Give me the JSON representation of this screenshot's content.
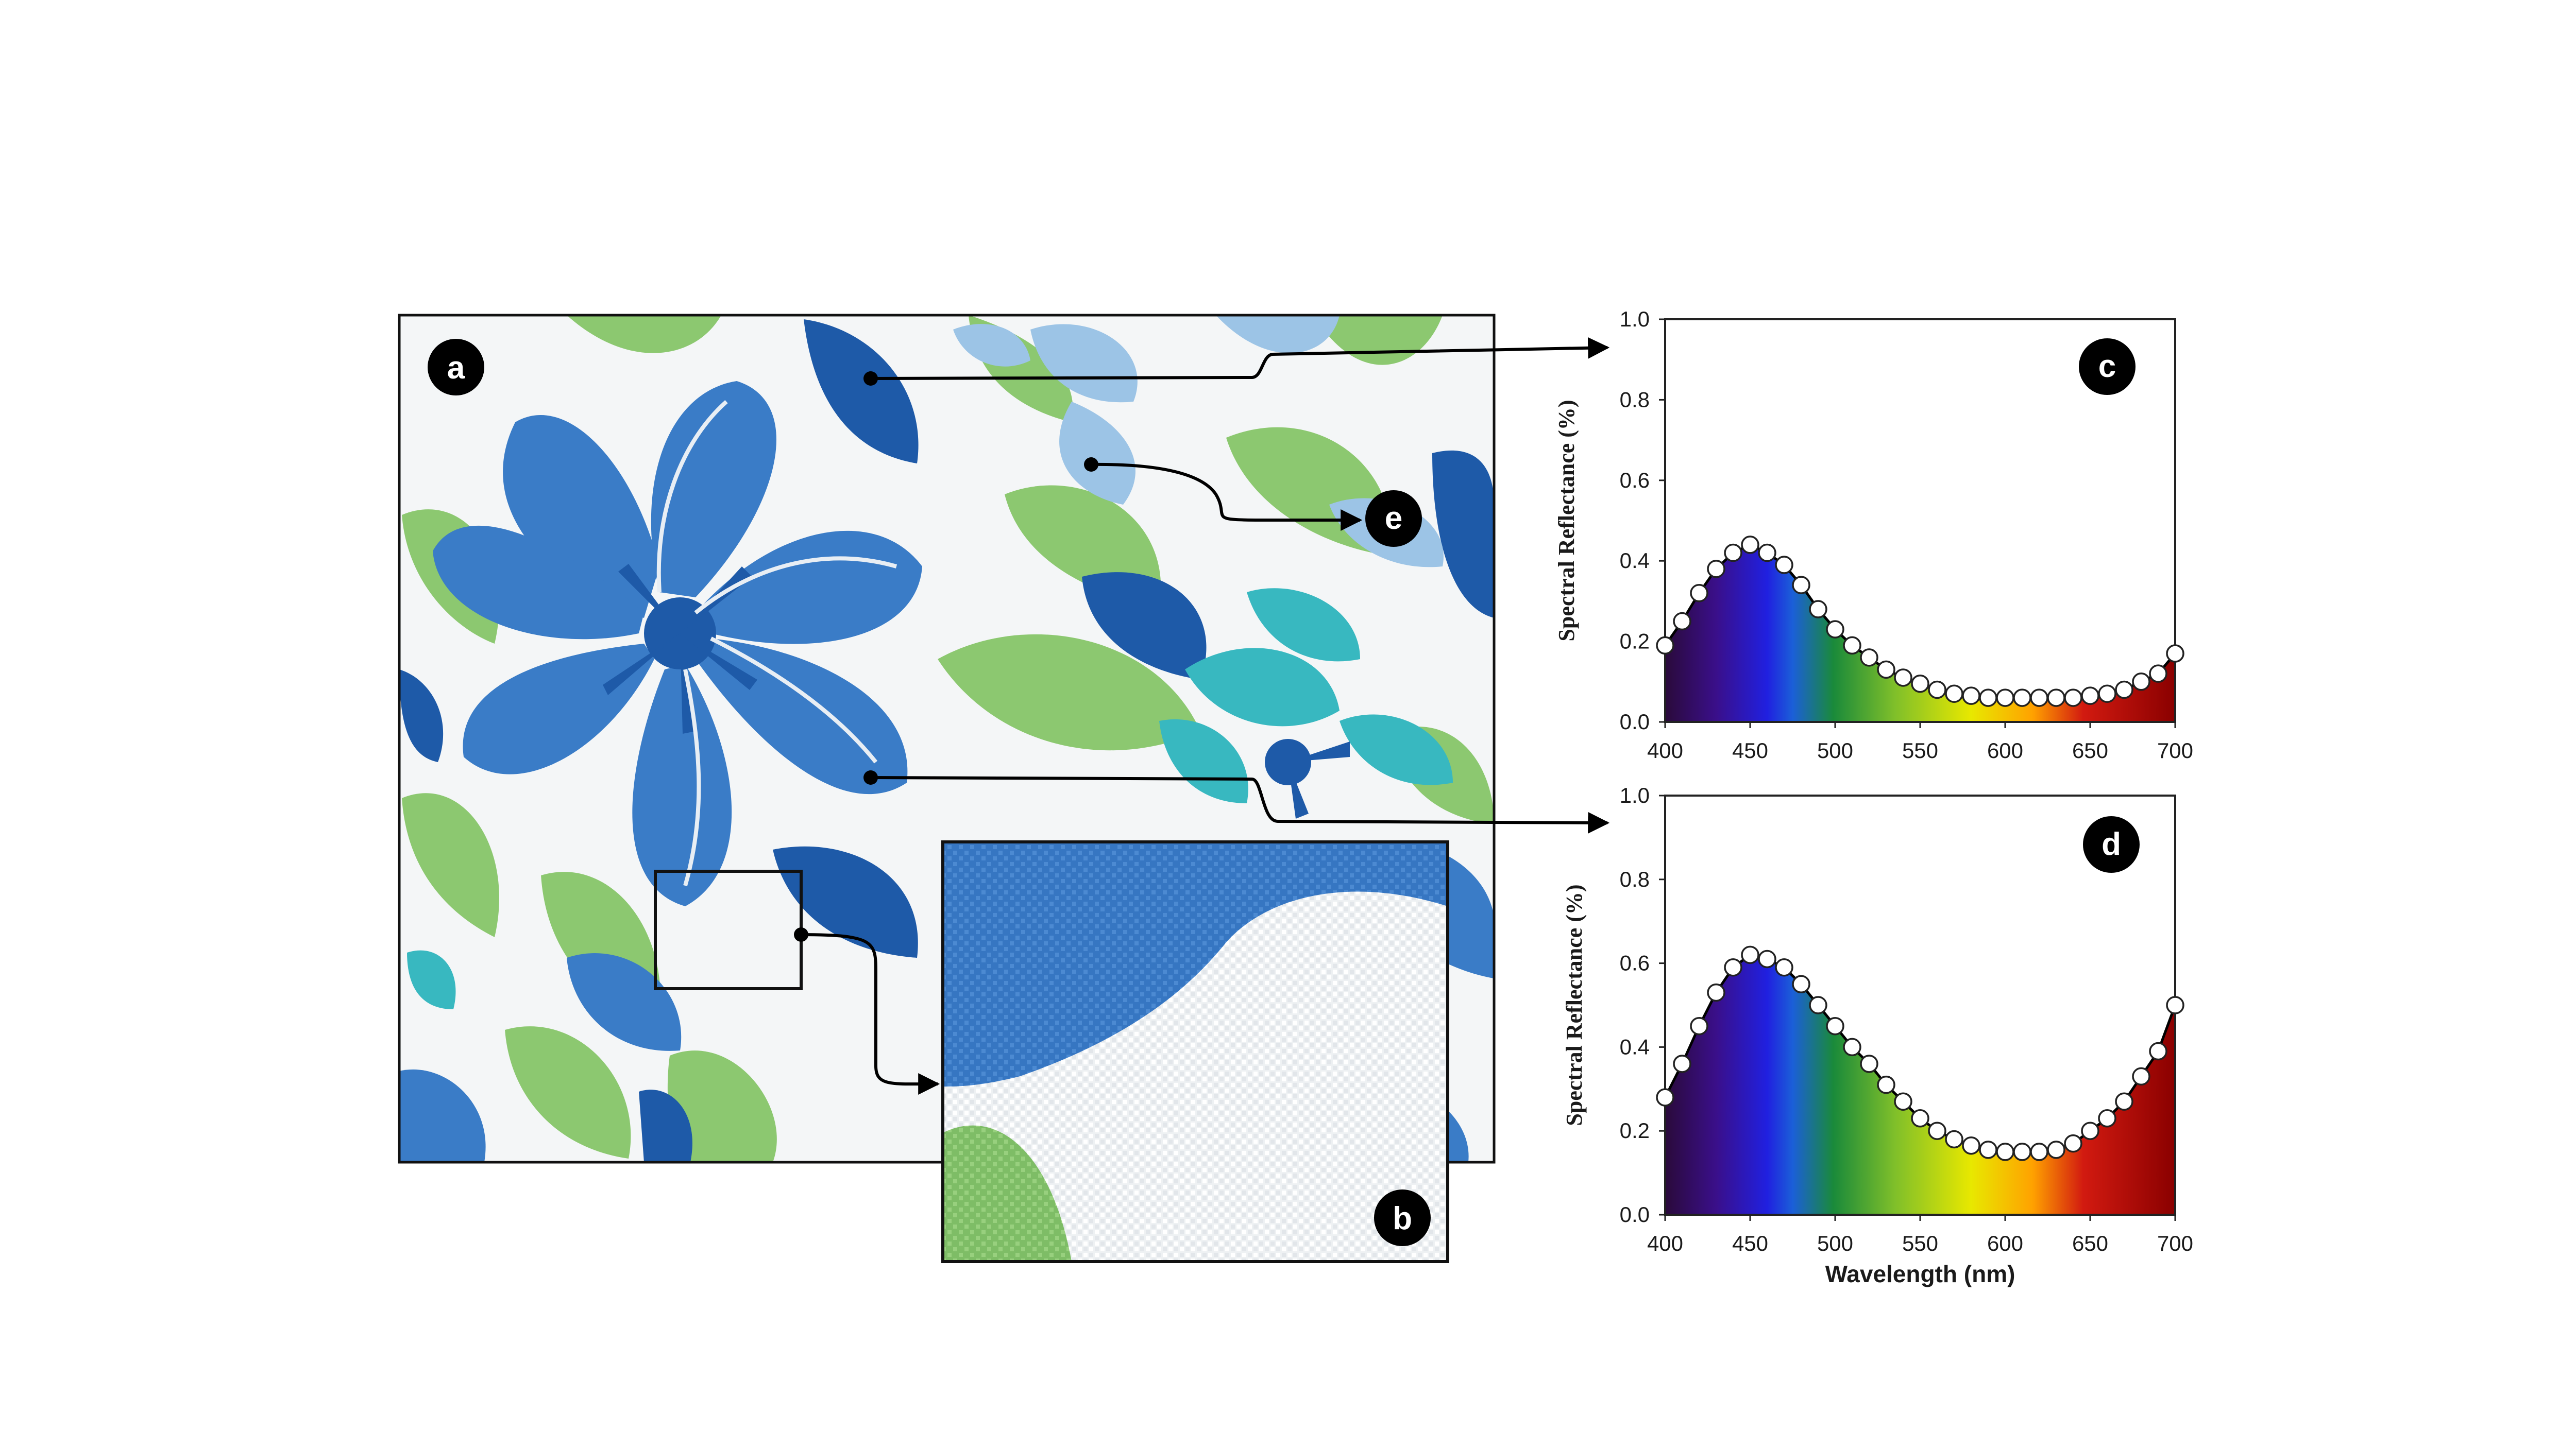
{
  "panels": {
    "a": "a",
    "b": "b",
    "c": "c",
    "d": "d",
    "e": "e"
  },
  "colors": {
    "fabric_white": "#f4f6f7",
    "flower_blue": "#3a7cc7",
    "navy": "#1e5aa8",
    "leaf_green": "#8cc870",
    "pale_blue": "#9cc4e6",
    "teal": "#38b8c0",
    "spectrum": [
      "#2a0a3a",
      "#3a0f8a",
      "#2020e0",
      "#1b5fd8",
      "#1a8a3a",
      "#7fbf2a",
      "#e8e800",
      "#ffa200",
      "#d21a10",
      "#8a0000"
    ]
  },
  "chart_data": [
    {
      "type": "line",
      "panel": "c",
      "xlabel": "",
      "ylabel": "Spectral Reflectance (%)",
      "xlim": [
        400,
        700
      ],
      "ylim": [
        0.0,
        1.0
      ],
      "x_ticks": [
        "400",
        "450",
        "500",
        "550",
        "600",
        "650",
        "700"
      ],
      "y_ticks": [
        "0.0",
        "0.2",
        "0.4",
        "0.6",
        "0.8",
        "1.0"
      ],
      "x": [
        400,
        410,
        420,
        430,
        440,
        450,
        460,
        470,
        480,
        490,
        500,
        510,
        520,
        530,
        540,
        550,
        560,
        570,
        580,
        590,
        600,
        610,
        620,
        630,
        640,
        650,
        660,
        670,
        680,
        690,
        700
      ],
      "y": [
        0.19,
        0.25,
        0.32,
        0.38,
        0.42,
        0.44,
        0.42,
        0.39,
        0.34,
        0.28,
        0.23,
        0.19,
        0.16,
        0.13,
        0.11,
        0.095,
        0.08,
        0.07,
        0.065,
        0.06,
        0.06,
        0.06,
        0.06,
        0.06,
        0.06,
        0.065,
        0.07,
        0.08,
        0.1,
        0.12,
        0.17
      ]
    },
    {
      "type": "line",
      "panel": "d",
      "xlabel": "Wavelength (nm)",
      "ylabel": "Spectral Reflectance (%)",
      "xlim": [
        400,
        700
      ],
      "ylim": [
        0.0,
        1.0
      ],
      "x_ticks": [
        "400",
        "450",
        "500",
        "550",
        "600",
        "650",
        "700"
      ],
      "y_ticks": [
        "0.0",
        "0.2",
        "0.4",
        "0.6",
        "0.8",
        "1.0"
      ],
      "x": [
        400,
        410,
        420,
        430,
        440,
        450,
        460,
        470,
        480,
        490,
        500,
        510,
        520,
        530,
        540,
        550,
        560,
        570,
        580,
        590,
        600,
        610,
        620,
        630,
        640,
        650,
        660,
        670,
        680,
        690,
        700
      ],
      "y": [
        0.28,
        0.36,
        0.45,
        0.53,
        0.59,
        0.62,
        0.61,
        0.59,
        0.55,
        0.5,
        0.45,
        0.4,
        0.36,
        0.31,
        0.27,
        0.23,
        0.2,
        0.18,
        0.165,
        0.155,
        0.15,
        0.15,
        0.15,
        0.155,
        0.17,
        0.2,
        0.23,
        0.27,
        0.33,
        0.39,
        0.5
      ]
    }
  ]
}
